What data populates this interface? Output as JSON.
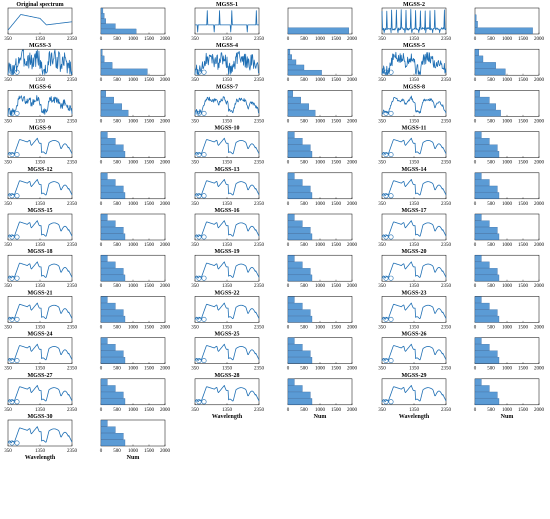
{
  "chart_data": [
    {
      "type": "line",
      "title": "Original spectrum",
      "pattern": "orig",
      "x_ticks": [
        "350",
        "1350",
        "2350"
      ],
      "xlim": [
        350,
        2350
      ],
      "xlabel": ""
    },
    {
      "type": "bar",
      "orientation": "horizontal",
      "title": "",
      "pattern": "hist-orig",
      "values": [
        1100,
        450,
        150,
        100,
        60
      ],
      "x_ticks": [
        "0",
        "500",
        "1000",
        "1500",
        "2000"
      ],
      "xlim": [
        0,
        2000
      ],
      "xlabel": ""
    },
    {
      "type": "line",
      "title": "MGSS-1",
      "pattern": "mgss1",
      "x_ticks": [
        "350",
        "1350",
        "2350"
      ],
      "xlim": [
        350,
        2350
      ],
      "xlabel": ""
    },
    {
      "type": "bar",
      "orientation": "horizontal",
      "title": "",
      "pattern": "hist-1",
      "values": [
        1900
      ],
      "x_ticks": [
        "0",
        "500",
        "1000",
        "1500",
        "2000"
      ],
      "xlim": [
        0,
        2000
      ],
      "xlabel": ""
    },
    {
      "type": "line",
      "title": "MGSS-2",
      "pattern": "mgss2",
      "x_ticks": [
        "350",
        "1350",
        "2350"
      ],
      "xlim": [
        350,
        2350
      ],
      "xlabel": ""
    },
    {
      "type": "bar",
      "orientation": "horizontal",
      "title": "",
      "pattern": "hist-2",
      "values": [
        1800,
        80,
        40
      ],
      "x_ticks": [
        "0",
        "500",
        "1000",
        "1500",
        "2000"
      ],
      "xlim": [
        0,
        2000
      ],
      "xlabel": ""
    },
    {
      "type": "line",
      "title": "MGSS-3",
      "pattern": "mgss3",
      "x_ticks": [
        "350",
        "1350",
        "2350"
      ],
      "xlim": [
        350,
        2350
      ],
      "xlabel": ""
    },
    {
      "type": "bar",
      "orientation": "horizontal",
      "title": "",
      "pattern": "hist-3",
      "values": [
        1450,
        350,
        100,
        40
      ],
      "x_ticks": [
        "0",
        "500",
        "1000",
        "1500",
        "2000"
      ],
      "xlim": [
        0,
        2000
      ],
      "xlabel": ""
    },
    {
      "type": "line",
      "title": "MGSS-4",
      "pattern": "mgss4",
      "x_ticks": [
        "350",
        "1350",
        "2350"
      ],
      "xlim": [
        350,
        2350
      ],
      "xlabel": ""
    },
    {
      "type": "bar",
      "orientation": "horizontal",
      "title": "",
      "pattern": "hist-4",
      "values": [
        1050,
        500,
        250,
        120,
        60
      ],
      "x_ticks": [
        "0",
        "500",
        "1000",
        "1500",
        "2000"
      ],
      "xlim": [
        0,
        2000
      ],
      "xlabel": ""
    },
    {
      "type": "line",
      "title": "MGSS-5",
      "pattern": "mgss5",
      "x_ticks": [
        "350",
        "1350",
        "2350"
      ],
      "xlim": [
        350,
        2350
      ],
      "xlabel": ""
    },
    {
      "type": "bar",
      "orientation": "horizontal",
      "title": "",
      "pattern": "hist-5",
      "values": [
        950,
        650,
        250,
        120
      ],
      "x_ticks": [
        "0",
        "500",
        "1000",
        "1500",
        "2000"
      ],
      "xlim": [
        0,
        2000
      ],
      "xlabel": ""
    },
    {
      "type": "line",
      "title": "MGSS-6",
      "pattern": "mgss6",
      "x_ticks": [
        "350",
        "1350",
        "2350"
      ],
      "xlim": [
        350,
        2350
      ],
      "xlabel": ""
    },
    {
      "type": "bar",
      "orientation": "horizontal",
      "title": "",
      "pattern": "hist-6",
      "values": [
        850,
        650,
        400,
        150
      ],
      "x_ticks": [
        "0",
        "500",
        "1000",
        "1500",
        "2000"
      ],
      "xlim": [
        0,
        2000
      ],
      "xlabel": ""
    },
    {
      "type": "line",
      "title": "MGSS-7",
      "pattern": "mgss7",
      "x_ticks": [
        "350",
        "1350",
        "2350"
      ],
      "xlim": [
        350,
        2350
      ],
      "xlabel": ""
    },
    {
      "type": "bar",
      "orientation": "horizontal",
      "title": "",
      "pattern": "hist-7",
      "values": [
        850,
        650,
        400,
        150
      ],
      "x_ticks": [
        "0",
        "500",
        "1000",
        "1500",
        "2000"
      ],
      "xlim": [
        0,
        2000
      ],
      "xlabel": ""
    },
    {
      "type": "line",
      "title": "MGSS-8",
      "pattern": "mgss8",
      "x_ticks": [
        "350",
        "1350",
        "2350"
      ],
      "xlim": [
        350,
        2350
      ],
      "xlabel": ""
    },
    {
      "type": "bar",
      "orientation": "horizontal",
      "title": "",
      "pattern": "hist-8",
      "values": [
        800,
        650,
        450,
        150
      ],
      "x_ticks": [
        "0",
        "500",
        "1000",
        "1500",
        "2000"
      ],
      "xlim": [
        0,
        2000
      ],
      "xlabel": ""
    },
    {
      "type": "line",
      "title": "MGSS-9",
      "pattern": "smooth",
      "x_ticks": [
        "350",
        "1350",
        "2350"
      ],
      "xlim": [
        350,
        2350
      ],
      "xlabel": ""
    },
    {
      "type": "bar",
      "orientation": "horizontal",
      "title": "",
      "pattern": "hist-9",
      "values": [
        750,
        700,
        450,
        200
      ],
      "x_ticks": [
        "0",
        "500",
        "1000",
        "1500",
        "2000"
      ],
      "xlim": [
        0,
        2000
      ],
      "xlabel": ""
    },
    {
      "type": "line",
      "title": "MGSS-10",
      "pattern": "smooth",
      "x_ticks": [
        "350",
        "1350",
        "2350"
      ],
      "xlim": [
        350,
        2350
      ],
      "xlabel": ""
    },
    {
      "type": "bar",
      "orientation": "horizontal",
      "title": "",
      "pattern": "hist-10",
      "values": [
        750,
        700,
        450,
        200
      ],
      "x_ticks": [
        "0",
        "500",
        "1000",
        "1500",
        "2000"
      ],
      "xlim": [
        0,
        2000
      ],
      "xlabel": ""
    },
    {
      "type": "line",
      "title": "MGSS-11",
      "pattern": "smooth",
      "x_ticks": [
        "350",
        "1350",
        "2350"
      ],
      "xlim": [
        350,
        2350
      ],
      "xlabel": ""
    },
    {
      "type": "bar",
      "orientation": "horizontal",
      "title": "",
      "pattern": "hist-11",
      "values": [
        750,
        700,
        450,
        200
      ],
      "x_ticks": [
        "0",
        "500",
        "1000",
        "1500",
        "2000"
      ],
      "xlim": [
        0,
        2000
      ],
      "xlabel": ""
    },
    {
      "type": "line",
      "title": "MGSS-12",
      "pattern": "smooth",
      "x_ticks": [
        "350",
        "1350",
        "2350"
      ],
      "xlim": [
        350,
        2350
      ],
      "xlabel": ""
    },
    {
      "type": "bar",
      "orientation": "horizontal",
      "title": "",
      "pattern": "hist-12",
      "values": [
        750,
        700,
        450,
        200
      ],
      "x_ticks": [
        "0",
        "500",
        "1000",
        "1500",
        "2000"
      ],
      "xlim": [
        0,
        2000
      ],
      "xlabel": ""
    },
    {
      "type": "line",
      "title": "MGSS-13",
      "pattern": "smooth",
      "x_ticks": [
        "350",
        "1350",
        "2350"
      ],
      "xlim": [
        350,
        2350
      ],
      "xlabel": ""
    },
    {
      "type": "bar",
      "orientation": "horizontal",
      "title": "",
      "pattern": "hist-13",
      "values": [
        750,
        700,
        450,
        200
      ],
      "x_ticks": [
        "0",
        "500",
        "1000",
        "1500",
        "2000"
      ],
      "xlim": [
        0,
        2000
      ],
      "xlabel": ""
    },
    {
      "type": "line",
      "title": "MGSS-14",
      "pattern": "smooth",
      "x_ticks": [
        "350",
        "1350",
        "2350"
      ],
      "xlim": [
        350,
        2350
      ],
      "xlabel": ""
    },
    {
      "type": "bar",
      "orientation": "horizontal",
      "title": "",
      "pattern": "hist-14",
      "values": [
        750,
        700,
        450,
        200
      ],
      "x_ticks": [
        "0",
        "500",
        "1000",
        "1500",
        "2000"
      ],
      "xlim": [
        0,
        2000
      ],
      "xlabel": ""
    },
    {
      "type": "line",
      "title": "MGSS-15",
      "pattern": "smooth",
      "x_ticks": [
        "350",
        "1350",
        "2350"
      ],
      "xlim": [
        350,
        2350
      ],
      "xlabel": ""
    },
    {
      "type": "bar",
      "orientation": "horizontal",
      "title": "",
      "pattern": "hist-15",
      "values": [
        750,
        700,
        450,
        200
      ],
      "x_ticks": [
        "0",
        "500",
        "1000",
        "1500",
        "2000"
      ],
      "xlim": [
        0,
        2000
      ],
      "xlabel": ""
    },
    {
      "type": "line",
      "title": "MGSS-16",
      "pattern": "smooth",
      "x_ticks": [
        "350",
        "1350",
        "2350"
      ],
      "xlim": [
        350,
        2350
      ],
      "xlabel": ""
    },
    {
      "type": "bar",
      "orientation": "horizontal",
      "title": "",
      "pattern": "hist-16",
      "values": [
        750,
        700,
        450,
        200
      ],
      "x_ticks": [
        "0",
        "500",
        "1000",
        "1500",
        "2000"
      ],
      "xlim": [
        0,
        2000
      ],
      "xlabel": ""
    },
    {
      "type": "line",
      "title": "MGSS-17",
      "pattern": "smooth",
      "x_ticks": [
        "350",
        "1350",
        "2350"
      ],
      "xlim": [
        350,
        2350
      ],
      "xlabel": ""
    },
    {
      "type": "bar",
      "orientation": "horizontal",
      "title": "",
      "pattern": "hist-17",
      "values": [
        750,
        700,
        450,
        200
      ],
      "x_ticks": [
        "0",
        "500",
        "1000",
        "1500",
        "2000"
      ],
      "xlim": [
        0,
        2000
      ],
      "xlabel": ""
    },
    {
      "type": "line",
      "title": "MGSS-18",
      "pattern": "smooth",
      "x_ticks": [
        "350",
        "1350",
        "2350"
      ],
      "xlim": [
        350,
        2350
      ],
      "xlabel": ""
    },
    {
      "type": "bar",
      "orientation": "horizontal",
      "title": "",
      "pattern": "hist-18",
      "values": [
        750,
        700,
        450,
        200
      ],
      "x_ticks": [
        "0",
        "500",
        "1000",
        "1500",
        "2000"
      ],
      "xlim": [
        0,
        2000
      ],
      "xlabel": ""
    },
    {
      "type": "line",
      "title": "MGSS-19",
      "pattern": "smooth",
      "x_ticks": [
        "350",
        "1350",
        "2350"
      ],
      "xlim": [
        350,
        2350
      ],
      "xlabel": ""
    },
    {
      "type": "bar",
      "orientation": "horizontal",
      "title": "",
      "pattern": "hist-19",
      "values": [
        750,
        700,
        450,
        200
      ],
      "x_ticks": [
        "0",
        "500",
        "1000",
        "1500",
        "2000"
      ],
      "xlim": [
        0,
        2000
      ],
      "xlabel": ""
    },
    {
      "type": "line",
      "title": "MGSS-20",
      "pattern": "smooth",
      "x_ticks": [
        "350",
        "1350",
        "2350"
      ],
      "xlim": [
        350,
        2350
      ],
      "xlabel": ""
    },
    {
      "type": "bar",
      "orientation": "horizontal",
      "title": "",
      "pattern": "hist-20",
      "values": [
        750,
        700,
        450,
        200
      ],
      "x_ticks": [
        "0",
        "500",
        "1000",
        "1500",
        "2000"
      ],
      "xlim": [
        0,
        2000
      ],
      "xlabel": ""
    },
    {
      "type": "line",
      "title": "MGSS-21",
      "pattern": "smooth",
      "x_ticks": [
        "350",
        "1350",
        "2350"
      ],
      "xlim": [
        350,
        2350
      ],
      "xlabel": ""
    },
    {
      "type": "bar",
      "orientation": "horizontal",
      "title": "",
      "pattern": "hist-21",
      "values": [
        750,
        700,
        450,
        200
      ],
      "x_ticks": [
        "0",
        "500",
        "1000",
        "1500",
        "2000"
      ],
      "xlim": [
        0,
        2000
      ],
      "xlabel": ""
    },
    {
      "type": "line",
      "title": "MGSS-22",
      "pattern": "smooth",
      "x_ticks": [
        "350",
        "1350",
        "2350"
      ],
      "xlim": [
        350,
        2350
      ],
      "xlabel": ""
    },
    {
      "type": "bar",
      "orientation": "horizontal",
      "title": "",
      "pattern": "hist-22",
      "values": [
        750,
        700,
        450,
        200
      ],
      "x_ticks": [
        "0",
        "500",
        "1000",
        "1500",
        "2000"
      ],
      "xlim": [
        0,
        2000
      ],
      "xlabel": ""
    },
    {
      "type": "line",
      "title": "MGSS-23",
      "pattern": "smooth",
      "x_ticks": [
        "350",
        "1350",
        "2350"
      ],
      "xlim": [
        350,
        2350
      ],
      "xlabel": ""
    },
    {
      "type": "bar",
      "orientation": "horizontal",
      "title": "",
      "pattern": "hist-23",
      "values": [
        750,
        700,
        450,
        200
      ],
      "x_ticks": [
        "0",
        "500",
        "1000",
        "1500",
        "2000"
      ],
      "xlim": [
        0,
        2000
      ],
      "xlabel": ""
    },
    {
      "type": "line",
      "title": "MGSS-24",
      "pattern": "smooth",
      "x_ticks": [
        "350",
        "1350",
        "2350"
      ],
      "xlim": [
        350,
        2350
      ],
      "xlabel": ""
    },
    {
      "type": "bar",
      "orientation": "horizontal",
      "title": "",
      "pattern": "hist-24",
      "values": [
        750,
        700,
        450,
        200
      ],
      "x_ticks": [
        "0",
        "500",
        "1000",
        "1500",
        "2000"
      ],
      "xlim": [
        0,
        2000
      ],
      "xlabel": ""
    },
    {
      "type": "line",
      "title": "MGSS-25",
      "pattern": "smooth",
      "x_ticks": [
        "350",
        "1350",
        "2350"
      ],
      "xlim": [
        350,
        2350
      ],
      "xlabel": ""
    },
    {
      "type": "bar",
      "orientation": "horizontal",
      "title": "",
      "pattern": "hist-25",
      "values": [
        750,
        700,
        450,
        200
      ],
      "x_ticks": [
        "0",
        "500",
        "1000",
        "1500",
        "2000"
      ],
      "xlim": [
        0,
        2000
      ],
      "xlabel": ""
    },
    {
      "type": "line",
      "title": "MGSS-26",
      "pattern": "smooth",
      "x_ticks": [
        "350",
        "1350",
        "2350"
      ],
      "xlim": [
        350,
        2350
      ],
      "xlabel": ""
    },
    {
      "type": "bar",
      "orientation": "horizontal",
      "title": "",
      "pattern": "hist-26",
      "values": [
        750,
        700,
        450,
        200
      ],
      "x_ticks": [
        "0",
        "500",
        "1000",
        "1500",
        "2000"
      ],
      "xlim": [
        0,
        2000
      ],
      "xlabel": ""
    },
    {
      "type": "line",
      "title": "MGSS-27",
      "pattern": "smooth",
      "x_ticks": [
        "350",
        "1350",
        "2350"
      ],
      "xlim": [
        350,
        2350
      ],
      "xlabel": ""
    },
    {
      "type": "bar",
      "orientation": "horizontal",
      "title": "",
      "pattern": "hist-27",
      "values": [
        750,
        700,
        450,
        200
      ],
      "x_ticks": [
        "0",
        "500",
        "1000",
        "1500",
        "2000"
      ],
      "xlim": [
        0,
        2000
      ],
      "xlabel": ""
    },
    {
      "type": "line",
      "title": "MGSS-28",
      "pattern": "smooth",
      "x_ticks": [
        "350",
        "1350",
        "2350"
      ],
      "xlim": [
        350,
        2350
      ],
      "xlabel": "Wavelength"
    },
    {
      "type": "bar",
      "orientation": "horizontal",
      "title": "",
      "pattern": "hist-28",
      "values": [
        750,
        700,
        450,
        200
      ],
      "x_ticks": [
        "0",
        "500",
        "1000",
        "1500",
        "2000"
      ],
      "xlim": [
        0,
        2000
      ],
      "xlabel": "Num"
    },
    {
      "type": "line",
      "title": "MGSS-29",
      "pattern": "smooth",
      "x_ticks": [
        "350",
        "1350",
        "2350"
      ],
      "xlim": [
        350,
        2350
      ],
      "xlabel": "Wavelength"
    },
    {
      "type": "bar",
      "orientation": "horizontal",
      "title": "",
      "pattern": "hist-29",
      "values": [
        750,
        700,
        450,
        200
      ],
      "x_ticks": [
        "0",
        "500",
        "1000",
        "1500",
        "2000"
      ],
      "xlim": [
        0,
        2000
      ],
      "xlabel": "Num"
    },
    {
      "type": "line",
      "title": "MGSS-30",
      "pattern": "smooth",
      "x_ticks": [
        "350",
        "1350",
        "2350"
      ],
      "xlim": [
        350,
        2350
      ],
      "xlabel": "Wavelength"
    },
    {
      "type": "bar",
      "orientation": "horizontal",
      "title": "",
      "pattern": "hist-30",
      "values": [
        750,
        700,
        450,
        200
      ],
      "x_ticks": [
        "0",
        "500",
        "1000",
        "1500",
        "2000"
      ],
      "xlim": [
        0,
        2000
      ],
      "xlabel": "Num"
    }
  ],
  "colors": {
    "line": "#1f6fb4",
    "bar_fill": "#5b9bd5",
    "bar_edge": "#2a5f99"
  }
}
